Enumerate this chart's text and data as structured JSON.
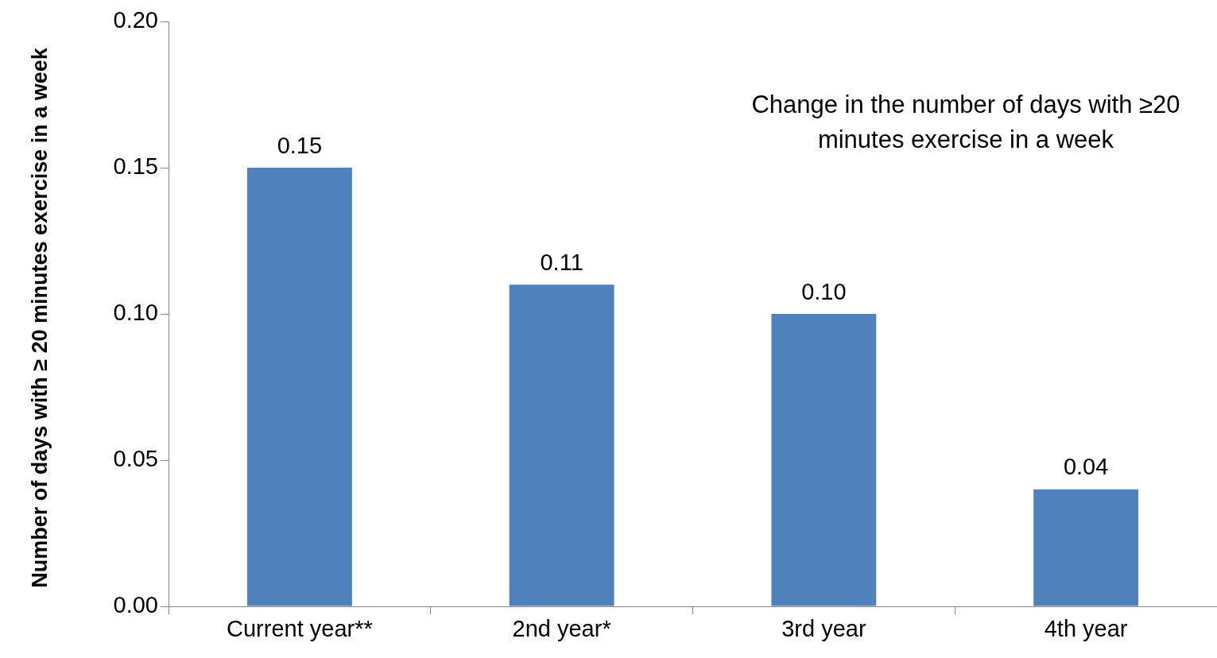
{
  "chart_data": {
    "type": "bar",
    "ylabel": "Number of days with ≥ 20 minutes exercise in a week",
    "categories": [
      "Current year**",
      "2nd year*",
      "3rd year",
      "4th year"
    ],
    "values": [
      0.15,
      0.11,
      0.1,
      0.04
    ],
    "color": "#4f81bd",
    "ylim": [
      0,
      0.2
    ],
    "yticks": [
      {
        "value": 0,
        "label": "0.00"
      },
      {
        "value": 0.05,
        "label": "0.05"
      },
      {
        "value": 0.1,
        "label": "0.10"
      },
      {
        "value": 0.15,
        "label": "0.15"
      },
      {
        "value": 0.2,
        "label": "0.20"
      }
    ],
    "value_labels": [
      "0.15",
      "0.11",
      "0.10",
      "0.04"
    ],
    "grid": false,
    "legend": false,
    "annotations": [
      "Change in the number of days with ≥20 minutes exercise in a week"
    ]
  }
}
